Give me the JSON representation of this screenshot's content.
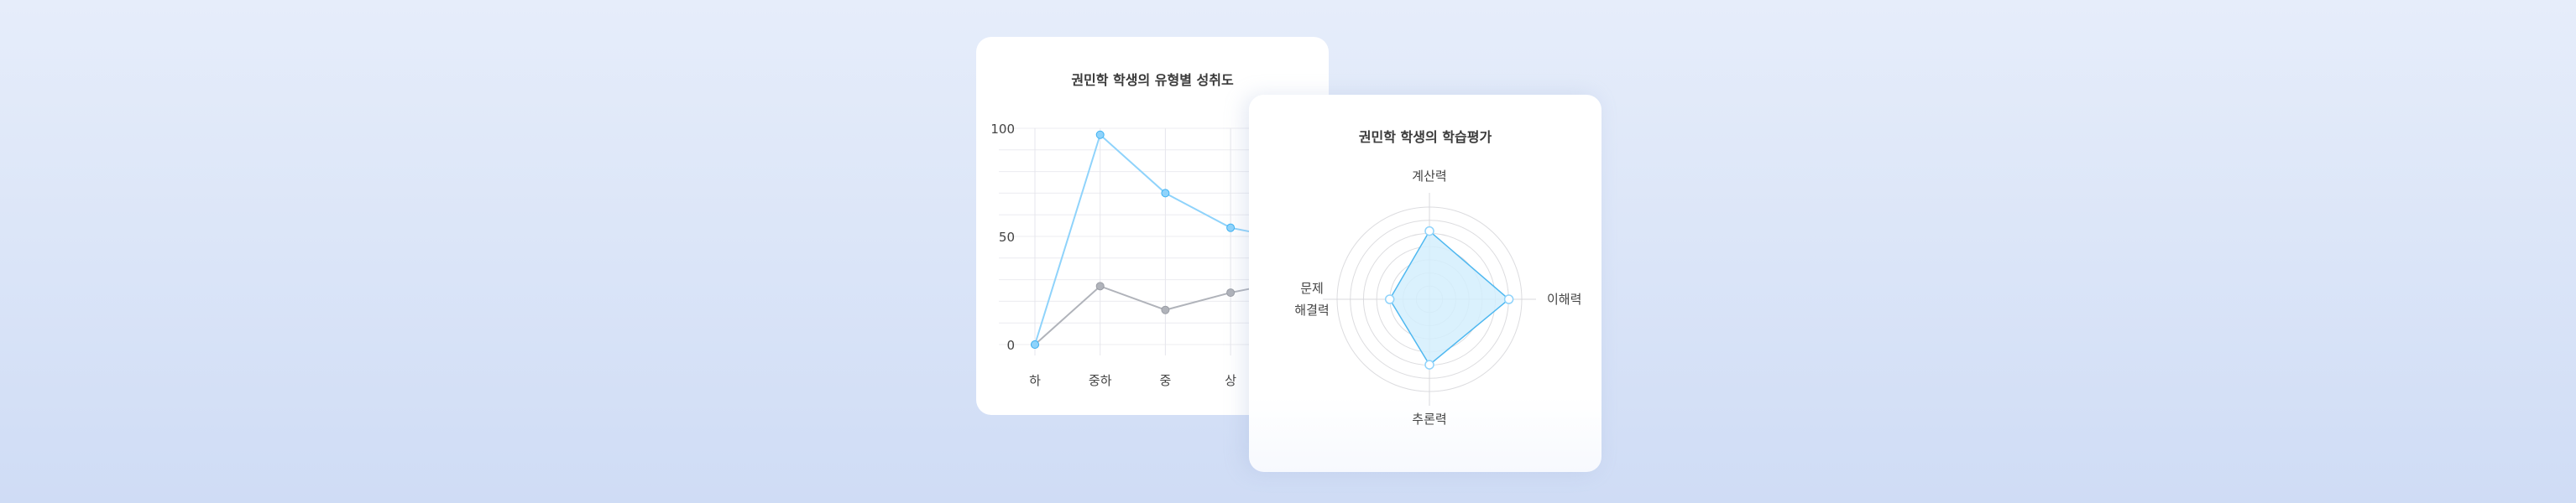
{
  "chart_data": [
    {
      "type": "line",
      "title": "권민학 학생의 유형별 성취도",
      "categories": [
        "하",
        "중하",
        "중",
        "상",
        ""
      ],
      "yticks": [
        0,
        50,
        100
      ],
      "ylim": [
        0,
        100
      ],
      "grid": true,
      "series": [
        {
          "values": [
            0,
            97,
            70,
            54,
            48
          ],
          "color": "#8fd3fb"
        },
        {
          "values": [
            0,
            27,
            16,
            24,
            30
          ],
          "color": "#b0b3ba"
        }
      ]
    },
    {
      "type": "radar",
      "title": "권민학 학생의 학습평가",
      "axes": [
        "계산력",
        "이해력",
        "추론력",
        "문제\n해결력"
      ],
      "values": [
        74,
        86,
        71,
        43
      ],
      "rlim": [
        0,
        100
      ],
      "rings": 7,
      "color": "#4fb8f0",
      "fill": "#d4effd"
    }
  ]
}
